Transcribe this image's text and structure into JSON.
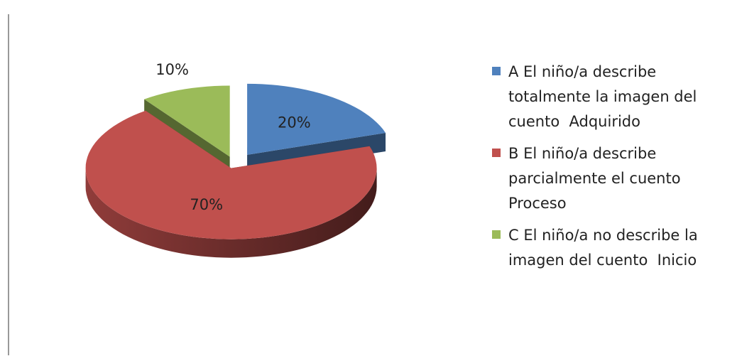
{
  "chart_data": {
    "type": "pie",
    "categories": [
      "A El niño/a describe totalmente la imagen del cuento  Adquirido",
      "B El niño/a describe parcialmente el cuento  Proceso",
      "C El niño/a no describe la imagen del cuento  Inicio"
    ],
    "values": [
      20,
      70,
      10
    ],
    "value_labels": [
      "20%",
      "70%",
      "10%"
    ],
    "colors": [
      "#4f81bd",
      "#c0504d",
      "#9bbb59"
    ],
    "legend": "right"
  }
}
